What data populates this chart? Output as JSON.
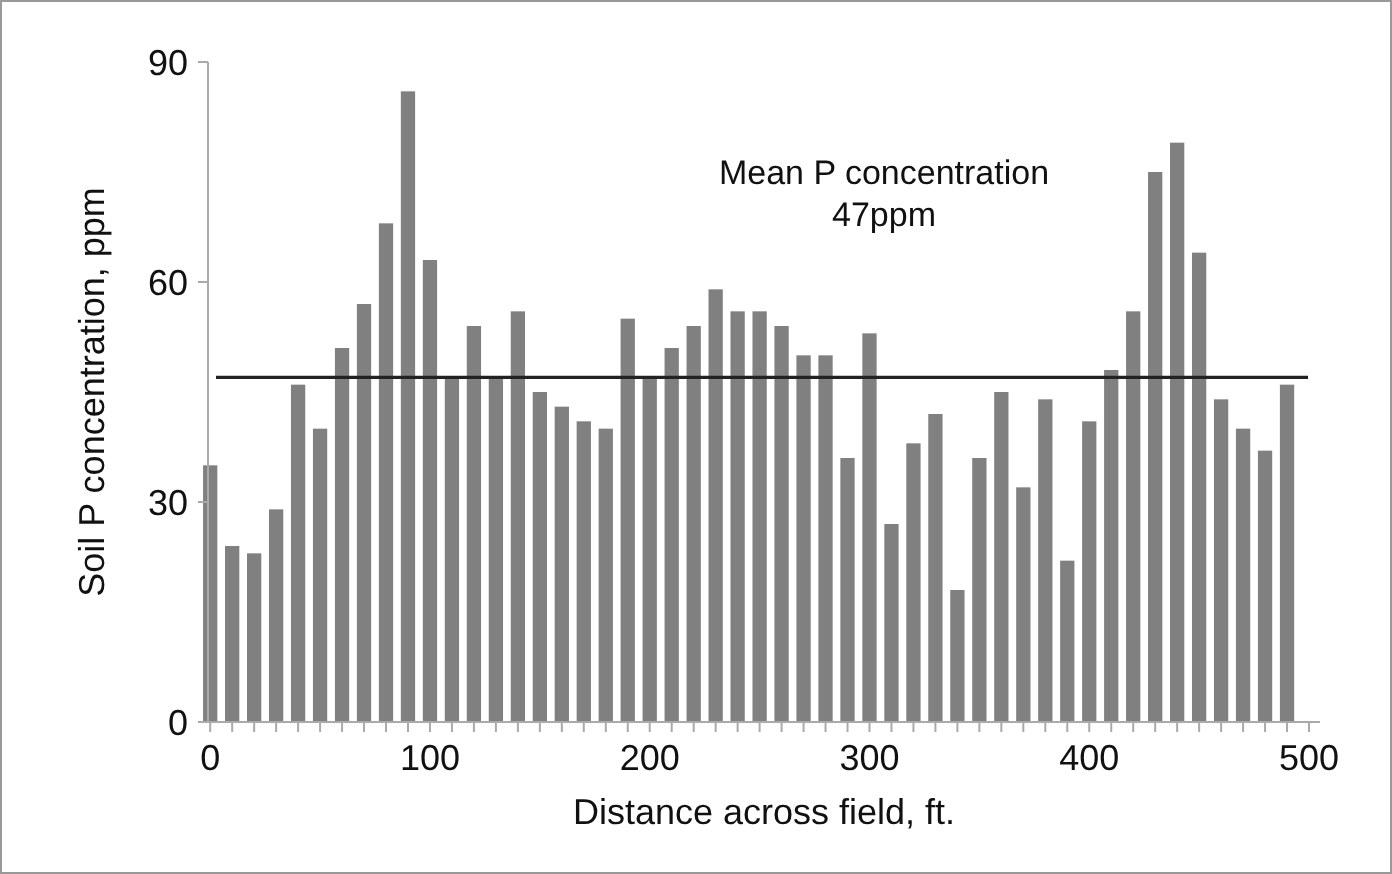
{
  "chart_data": {
    "type": "bar",
    "xlabel": "Distance across field, ft.",
    "ylabel": "Soil P concentration, ppm",
    "x": [
      0,
      10,
      20,
      30,
      40,
      50,
      60,
      70,
      80,
      90,
      100,
      110,
      120,
      130,
      140,
      150,
      160,
      170,
      180,
      190,
      200,
      210,
      220,
      230,
      240,
      250,
      260,
      270,
      280,
      290,
      300,
      310,
      320,
      330,
      340,
      350,
      360,
      370,
      380,
      390,
      400,
      410,
      420,
      430,
      440,
      450,
      460,
      470,
      480,
      490
    ],
    "values": [
      35,
      24,
      23,
      29,
      46,
      40,
      51,
      57,
      68,
      86,
      63,
      47,
      54,
      47,
      56,
      45,
      43,
      41,
      40,
      55,
      47,
      51,
      54,
      59,
      56,
      56,
      54,
      50,
      50,
      36,
      53,
      27,
      38,
      42,
      18,
      36,
      45,
      32,
      44,
      22,
      41,
      48,
      56,
      75,
      79,
      64,
      44,
      40,
      37,
      46
    ],
    "color": "#808080",
    "xlim": [
      -1,
      505
    ],
    "ylim": [
      0,
      90
    ],
    "xticks": [
      0,
      {
        "value": 10,
        "label": null
      },
      {
        "value": 20,
        "label": null
      },
      {
        "value": 30,
        "label": null
      },
      {
        "value": 40,
        "label": null
      },
      {
        "value": 50,
        "label": null
      },
      {
        "value": 60,
        "label": null
      },
      {
        "value": 70,
        "label": null
      },
      {
        "value": 80,
        "label": null
      },
      {
        "value": 90,
        "label": null
      },
      100,
      {
        "value": 110,
        "label": null
      },
      {
        "value": 120,
        "label": null
      },
      {
        "value": 130,
        "label": null
      },
      {
        "value": 140,
        "label": null
      },
      {
        "value": 150,
        "label": null
      },
      {
        "value": 160,
        "label": null
      },
      {
        "value": 170,
        "label": null
      },
      {
        "value": 180,
        "label": null
      },
      {
        "value": 190,
        "label": null
      },
      200,
      {
        "value": 210,
        "label": null
      },
      {
        "value": 220,
        "label": null
      },
      {
        "value": 230,
        "label": null
      },
      {
        "value": 240,
        "label": null
      },
      {
        "value": 250,
        "label": null
      },
      {
        "value": 260,
        "label": null
      },
      {
        "value": 270,
        "label": null
      },
      {
        "value": 280,
        "label": null
      },
      {
        "value": 290,
        "label": null
      },
      300,
      {
        "value": 310,
        "label": null
      },
      {
        "value": 320,
        "label": null
      },
      {
        "value": 330,
        "label": null
      },
      {
        "value": 340,
        "label": null
      },
      {
        "value": 350,
        "label": null
      },
      {
        "value": 360,
        "label": null
      },
      {
        "value": 370,
        "label": null
      },
      {
        "value": 380,
        "label": null
      },
      {
        "value": 390,
        "label": null
      },
      400,
      {
        "value": 410,
        "label": null
      },
      {
        "value": 420,
        "label": null
      },
      {
        "value": 430,
        "label": null
      },
      {
        "value": 440,
        "label": null
      },
      {
        "value": 450,
        "label": null
      },
      {
        "value": 460,
        "label": null
      },
      {
        "value": 470,
        "label": null
      },
      {
        "value": 480,
        "label": null
      },
      {
        "value": 490,
        "label": null
      },
      500
    ],
    "yticks": [
      0,
      30,
      60,
      90
    ],
    "ref_lines": [
      {
        "axis": "y",
        "value": 47,
        "label": "Mean P concentration\n47ppm",
        "color": "#222222"
      }
    ]
  }
}
